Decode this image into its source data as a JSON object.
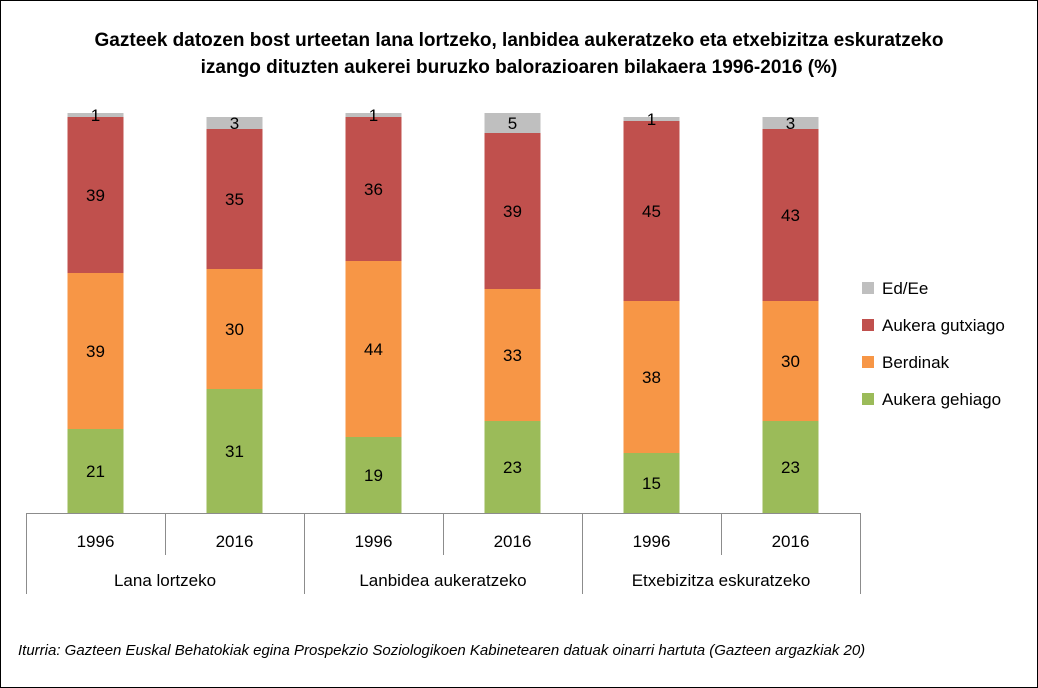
{
  "chart_data": {
    "type": "bar",
    "stacked": true,
    "title_lines": [
      "Gazteek datozen bost urteetan lana lortzeko, lanbidea aukeratzeko eta etxebizitza eskuratzeko",
      "izango dituzten aukerei buruzko balorazioaren bilakaera 1996-2016 (%)"
    ],
    "groups": [
      {
        "label": "Lana lortzeko",
        "years": [
          "1996",
          "2016"
        ]
      },
      {
        "label": "Lanbidea aukeratzeko",
        "years": [
          "1996",
          "2016"
        ]
      },
      {
        "label": "Etxebizitza eskuratzeko",
        "years": [
          "1996",
          "2016"
        ]
      }
    ],
    "categories": [
      "1996",
      "2016",
      "1996",
      "2016",
      "1996",
      "2016"
    ],
    "series": [
      {
        "name": "Aukera gehiago",
        "color": "#9BBB59",
        "values": [
          21,
          31,
          19,
          23,
          15,
          23
        ]
      },
      {
        "name": "Berdinak",
        "color": "#F79646",
        "values": [
          39,
          30,
          44,
          33,
          38,
          30
        ]
      },
      {
        "name": "Aukera gutxiago",
        "color": "#C0504D",
        "values": [
          39,
          35,
          36,
          39,
          45,
          43
        ]
      },
      {
        "name": "Ed/Ee",
        "color": "#BFBFBF",
        "values": [
          1,
          3,
          1,
          5,
          1,
          3
        ]
      }
    ],
    "legend_order": [
      "Ed/Ee",
      "Aukera gutxiago",
      "Berdinak",
      "Aukera gehiago"
    ],
    "legend_position": "right",
    "ylim": [
      0,
      100
    ],
    "grid": false
  },
  "source": "Iturria: Gazteen Euskal Behatokiak egina Prospekzio Soziologikoen Kabinetearen datuak oinarri hartuta (Gazteen argazkiak 20)"
}
